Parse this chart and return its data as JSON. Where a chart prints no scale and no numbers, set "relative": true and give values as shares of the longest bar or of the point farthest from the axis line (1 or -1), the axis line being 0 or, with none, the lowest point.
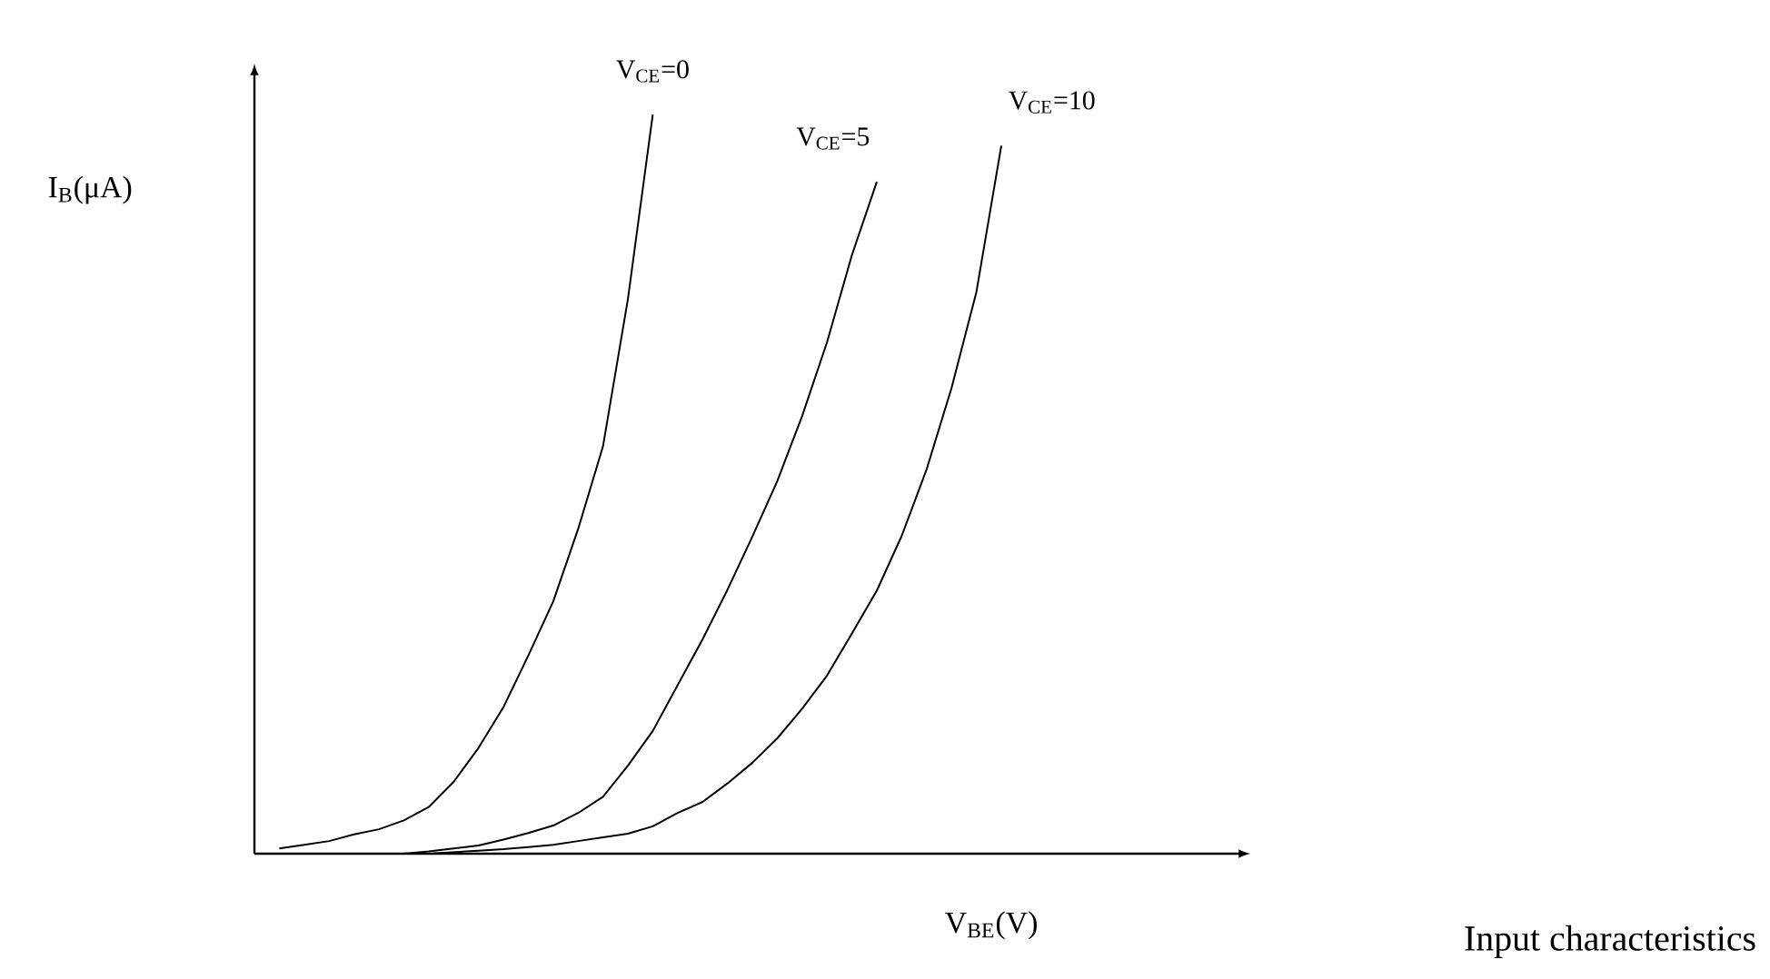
{
  "chart_data": {
    "type": "line",
    "relative": true,
    "xlabel": "V$_{BE}$(V)",
    "ylabel": "I$_{B}$(μA)",
    "annotations": [
      "Input characteristics"
    ],
    "tick_labels": false,
    "marker": "none",
    "line_style": "solid",
    "categories": [
      null,
      null,
      null,
      null,
      null,
      null,
      null,
      null,
      null,
      null,
      null,
      null,
      null,
      null,
      null,
      null,
      null,
      null,
      null,
      null,
      null,
      null,
      null,
      null,
      null,
      null,
      null,
      null,
      null,
      null,
      null,
      null,
      null,
      null,
      null,
      null,
      null,
      null,
      null,
      null,
      null
    ],
    "series": [
      {
        "name": "V$_{CE}$=0",
        "color": "#000000",
        "values": [
          null,
          0.007,
          0.012,
          0.017,
          0.026,
          0.033,
          0.045,
          0.063,
          0.097,
          0.143,
          0.198,
          0.268,
          0.341,
          0.439,
          0.551,
          0.75,
          1.0,
          null,
          null,
          null,
          null,
          null,
          null,
          null,
          null,
          null,
          null,
          null,
          null,
          null,
          null,
          null,
          null,
          null,
          null,
          null,
          null,
          null,
          null,
          null,
          null
        ]
      },
      {
        "name": "V$_{CE}$=5",
        "color": "#000000",
        "values": [
          null,
          null,
          null,
          null,
          null,
          null,
          0,
          0.003,
          0.007,
          0.011,
          0.019,
          0.028,
          0.038,
          0.055,
          0.077,
          0.119,
          0.166,
          0.228,
          0.29,
          0.357,
          0.429,
          0.504,
          0.592,
          0.692,
          0.81,
          0.909,
          null,
          null,
          null,
          null,
          null,
          null,
          null,
          null,
          null,
          null,
          null,
          null,
          null,
          null,
          null
        ]
      },
      {
        "name": "V$_{CE}$=10",
        "color": "#000000",
        "values": [
          null,
          null,
          null,
          null,
          null,
          null,
          null,
          0,
          0.002,
          0.004,
          0.006,
          0.009,
          0.012,
          0.017,
          0.022,
          0.027,
          0.037,
          0.055,
          0.07,
          0.095,
          0.123,
          0.156,
          0.196,
          0.241,
          0.298,
          0.356,
          0.43,
          0.52,
          0.63,
          0.76,
          0.958,
          null,
          null,
          null,
          null,
          null,
          null,
          null,
          null,
          null,
          null
        ]
      }
    ]
  }
}
